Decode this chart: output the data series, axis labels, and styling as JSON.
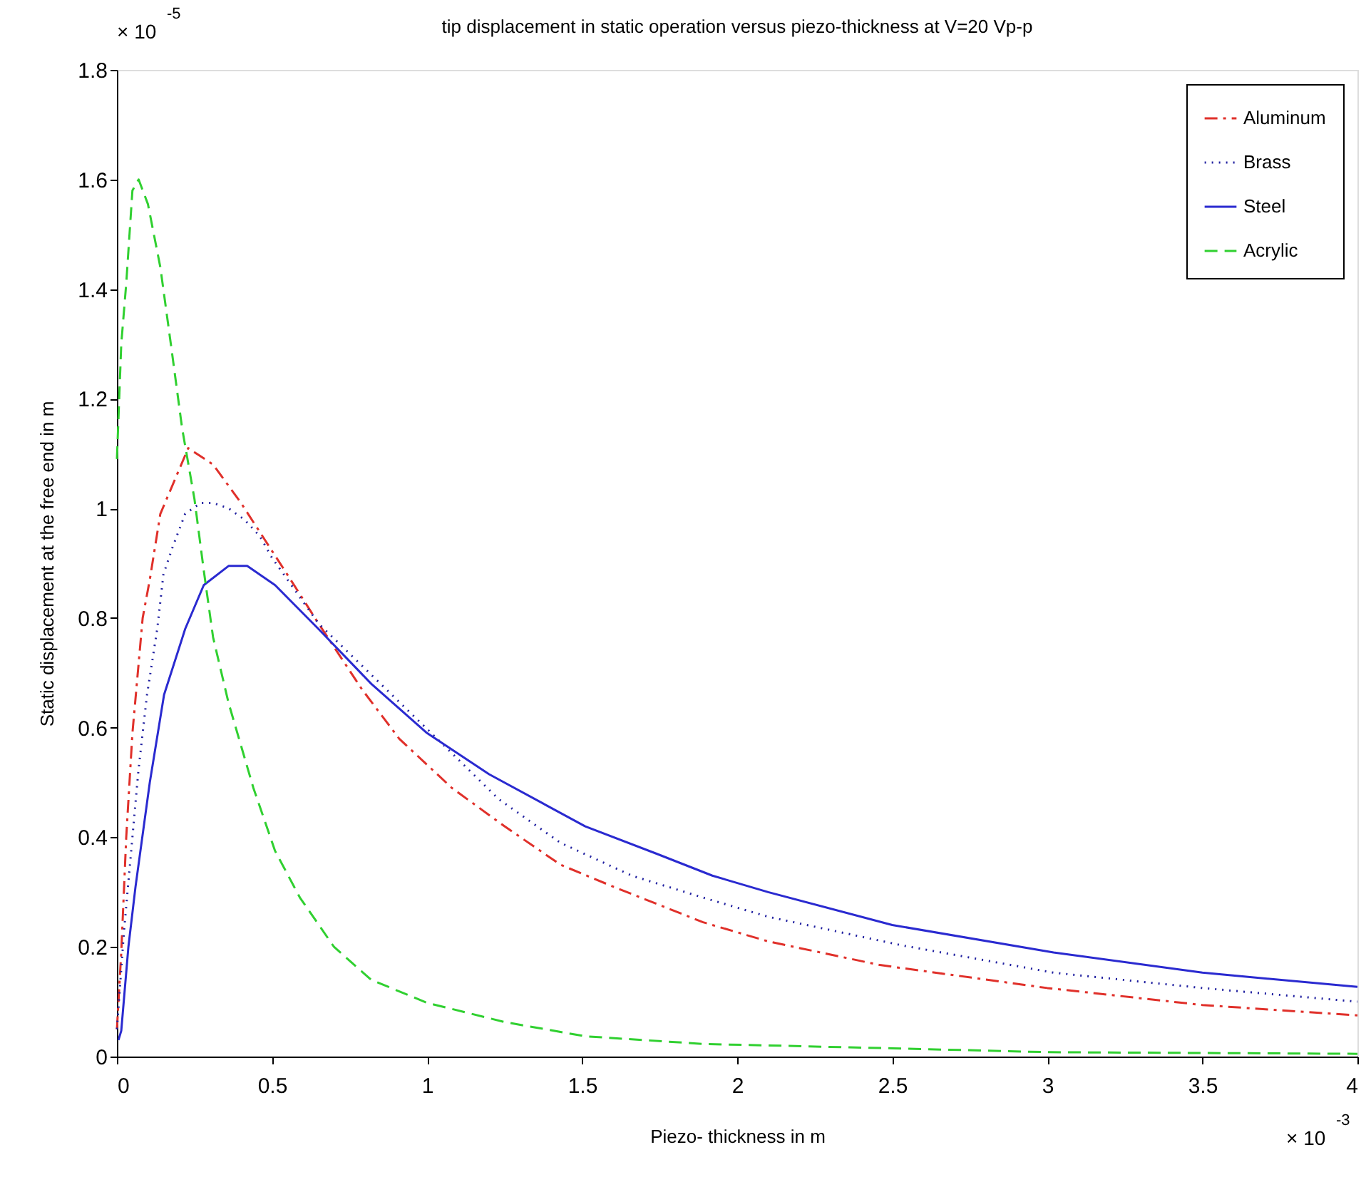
{
  "chart_data": {
    "type": "line",
    "title": "tip displacement in static operation versus piezo-thickness at V=20 Vp-p",
    "xlabel": "Piezo- thickness in m",
    "ylabel": "Static displacement at the free end in m",
    "annotations": [
      "× 10$^{-5}$",
      "× 10$^{-3}$"
    ],
    "xlim": [
      0,
      4
    ],
    "ylim": [
      0,
      1.8
    ],
    "xticks": [
      0,
      0.5,
      1,
      1.5,
      2,
      2.5,
      3,
      3.5,
      4
    ],
    "yticks": [
      0,
      0.2,
      0.4,
      0.6,
      0.8,
      1,
      1.2,
      1.4,
      1.6,
      1.8
    ],
    "grid": false,
    "legend": "top right",
    "marker": "none",
    "series": [
      {
        "name": "Aluminum",
        "color": "#e0302a",
        "line_style": "dashdot",
        "x": [
          0,
          0.014,
          0.03,
          0.05,
          0.083,
          0.106,
          0.14,
          0.23,
          0.31,
          0.4,
          0.48,
          0.56,
          0.65,
          0.79,
          0.91,
          1.08,
          1.25,
          1.43,
          1.6,
          1.89,
          2.1,
          2.46,
          3.0,
          3.5,
          4.0
        ],
        "values": [
          0.05,
          0.19,
          0.4,
          0.59,
          0.8,
          0.87,
          0.99,
          1.11,
          1.08,
          1.01,
          0.94,
          0.87,
          0.79,
          0.67,
          0.58,
          0.49,
          0.42,
          0.35,
          0.31,
          0.245,
          0.21,
          0.167,
          0.125,
          0.094,
          0.075
        ]
      },
      {
        "name": "Brass",
        "color": "#2020a0",
        "line_style": "dotted",
        "x": [
          0,
          0.023,
          0.046,
          0.069,
          0.097,
          0.13,
          0.15,
          0.18,
          0.22,
          0.27,
          0.31,
          0.36,
          0.41,
          0.46,
          0.5,
          0.65,
          0.85,
          1.05,
          1.23,
          1.43,
          1.66,
          1.89,
          2.1,
          2.53,
          3.02,
          3.5,
          4.0
        ],
        "values": [
          0.05,
          0.23,
          0.375,
          0.52,
          0.66,
          0.78,
          0.88,
          0.93,
          0.99,
          1.01,
          1.01,
          1.0,
          0.98,
          0.95,
          0.91,
          0.79,
          0.68,
          0.57,
          0.47,
          0.39,
          0.33,
          0.29,
          0.255,
          0.203,
          0.153,
          0.125,
          0.1
        ]
      },
      {
        "name": "Steel",
        "color": "#2a2ad0",
        "line_style": "solid",
        "x": [
          0.005,
          0.014,
          0.037,
          0.06,
          0.106,
          0.152,
          0.22,
          0.28,
          0.36,
          0.42,
          0.51,
          0.65,
          0.82,
          1.0,
          1.2,
          1.51,
          1.74,
          1.92,
          2.1,
          2.5,
          3.02,
          3.5,
          4.0
        ],
        "values": [
          0.03,
          0.047,
          0.2,
          0.31,
          0.5,
          0.66,
          0.78,
          0.86,
          0.895,
          0.895,
          0.86,
          0.78,
          0.68,
          0.59,
          0.515,
          0.42,
          0.37,
          0.33,
          0.3,
          0.24,
          0.19,
          0.153,
          0.127
        ]
      },
      {
        "name": "Acrylic",
        "color": "#30d030",
        "line_style": "dashed",
        "x": [
          0,
          0.014,
          0.03,
          0.05,
          0.07,
          0.1,
          0.14,
          0.175,
          0.21,
          0.25,
          0.28,
          0.31,
          0.36,
          0.44,
          0.51,
          0.59,
          0.7,
          0.82,
          1.0,
          1.25,
          1.51,
          1.89,
          2.5,
          3.0,
          4.0
        ],
        "values": [
          1.09,
          1.3,
          1.41,
          1.58,
          1.6,
          1.555,
          1.44,
          1.295,
          1.147,
          1.017,
          0.887,
          0.765,
          0.645,
          0.49,
          0.375,
          0.29,
          0.2,
          0.14,
          0.098,
          0.063,
          0.037,
          0.023,
          0.015,
          0.008,
          0.005
        ]
      }
    ]
  }
}
